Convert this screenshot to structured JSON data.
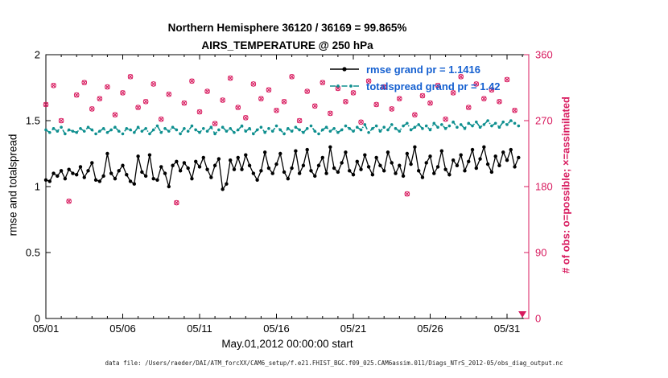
{
  "caption": "data file: /Users/raeder/DAI/ATM_forcXX/CAM6_setup/f.e21.FHIST_BGC.f09_025.CAM6assim.011/Diags_NTrS_2012-05/obs_diag_output.nc",
  "colors": {
    "rmse": "#000000",
    "totalspread": "#0e8f8f",
    "obs": "#d81b5f",
    "legend_text": "#1560d0",
    "background": "#ffffff"
  },
  "chart_data": {
    "type": "line",
    "title": "Northern Hemisphere 36120 / 36169 = 99.865%",
    "subtitle": "AIRS_TEMPERATURE @ 250 hPa",
    "xlabel": "May.01,2012 00:00:00 start",
    "ylabel_left": "rmse and totalspread",
    "ylabel_right": "# of obs: o=possible; ×=assimilated",
    "x_tick_labels": [
      "05/01",
      "05/06",
      "05/11",
      "05/16",
      "05/21",
      "05/26",
      "05/31"
    ],
    "x_tick_days": [
      0,
      5,
      10,
      15,
      20,
      25,
      30
    ],
    "x_range_days": [
      0,
      31.4
    ],
    "y_left": {
      "ticks": [
        0,
        0.5,
        1,
        1.5,
        2
      ],
      "tick_labels": [
        "0",
        "0.5",
        "1",
        "1.5",
        "2"
      ],
      "range": [
        0,
        2
      ]
    },
    "y_right": {
      "ticks": [
        0,
        90,
        180,
        270,
        360
      ],
      "tick_labels": [
        "0",
        "90",
        "180",
        "270",
        "360"
      ],
      "range": [
        0,
        360
      ]
    },
    "grand_means": {
      "rmse": 1.1416,
      "totalspread": 1.42
    },
    "obs_totals": {
      "assimilated": 36120,
      "possible": 36169,
      "percent": "99.865%"
    },
    "legend": {
      "position": "top-center-inside",
      "entries": [
        {
          "label": "rmse grand pr = 1.1416"
        },
        {
          "label": "totalspread grand pr = 1.42"
        }
      ]
    },
    "series": [
      {
        "name": "rmse",
        "axis": "left",
        "samples_per_day": 4,
        "color": "#000000",
        "marker": "point",
        "line": "solid",
        "values": [
          1.05,
          1.04,
          1.1,
          1.08,
          1.12,
          1.06,
          1.13,
          1.1,
          1.09,
          1.15,
          1.07,
          1.12,
          1.18,
          1.05,
          1.04,
          1.08,
          1.25,
          1.1,
          1.06,
          1.12,
          1.16,
          1.09,
          1.04,
          1.02,
          1.23,
          1.11,
          1.08,
          1.24,
          1.06,
          1.05,
          1.15,
          1.1,
          1.0,
          1.16,
          1.19,
          1.12,
          1.18,
          1.14,
          1.06,
          1.19,
          1.15,
          1.22,
          1.13,
          1.07,
          1.16,
          1.21,
          0.98,
          1.02,
          1.2,
          1.13,
          1.22,
          1.13,
          1.24,
          1.16,
          1.1,
          1.05,
          1.12,
          1.26,
          1.14,
          1.1,
          1.17,
          1.25,
          1.11,
          1.06,
          1.14,
          1.27,
          1.1,
          1.16,
          1.28,
          1.12,
          1.08,
          1.16,
          1.22,
          1.1,
          1.3,
          1.14,
          1.11,
          1.18,
          1.26,
          1.12,
          1.09,
          1.19,
          1.13,
          1.24,
          1.15,
          1.09,
          1.22,
          1.16,
          1.12,
          1.26,
          1.18,
          1.1,
          1.16,
          1.08,
          1.25,
          1.17,
          1.3,
          1.12,
          1.07,
          1.18,
          1.23,
          1.1,
          1.15,
          1.27,
          1.13,
          1.09,
          1.2,
          1.16,
          1.24,
          1.12,
          1.19,
          1.28,
          1.14,
          1.21,
          1.3,
          1.17,
          1.11,
          1.23,
          1.16,
          1.26,
          1.2,
          1.28,
          1.15,
          1.22
        ]
      },
      {
        "name": "totalspread",
        "axis": "left",
        "samples_per_day": 4,
        "color": "#0e8f8f",
        "marker": "point",
        "line": "dash-dot",
        "values": [
          1.43,
          1.41,
          1.44,
          1.42,
          1.45,
          1.4,
          1.43,
          1.42,
          1.41,
          1.44,
          1.42,
          1.45,
          1.43,
          1.4,
          1.42,
          1.44,
          1.41,
          1.43,
          1.45,
          1.42,
          1.4,
          1.44,
          1.43,
          1.41,
          1.45,
          1.42,
          1.44,
          1.4,
          1.43,
          1.46,
          1.41,
          1.44,
          1.42,
          1.45,
          1.43,
          1.4,
          1.44,
          1.42,
          1.46,
          1.43,
          1.41,
          1.44,
          1.42,
          1.45,
          1.4,
          1.43,
          1.45,
          1.42,
          1.44,
          1.41,
          1.43,
          1.46,
          1.42,
          1.44,
          1.4,
          1.43,
          1.45,
          1.41,
          1.44,
          1.42,
          1.46,
          1.43,
          1.4,
          1.44,
          1.42,
          1.45,
          1.43,
          1.41,
          1.44,
          1.46,
          1.42,
          1.4,
          1.43,
          1.45,
          1.42,
          1.44,
          1.41,
          1.43,
          1.46,
          1.44,
          1.42,
          1.45,
          1.43,
          1.47,
          1.41,
          1.44,
          1.46,
          1.42,
          1.45,
          1.43,
          1.47,
          1.44,
          1.42,
          1.46,
          1.48,
          1.43,
          1.45,
          1.47,
          1.44,
          1.46,
          1.43,
          1.48,
          1.45,
          1.47,
          1.44,
          1.46,
          1.49,
          1.45,
          1.47,
          1.44,
          1.48,
          1.46,
          1.49,
          1.45,
          1.47,
          1.5,
          1.46,
          1.48,
          1.45,
          1.49,
          1.47,
          1.5,
          1.48,
          1.46
        ]
      },
      {
        "name": "obs_count",
        "axis": "right",
        "samples_per_day": 2,
        "color": "#d81b5f",
        "marker": "o+x",
        "line": "none",
        "note": "o=possible and x=assimilated overlap (99.865% assimilated)",
        "values": [
          292,
          318,
          270,
          160,
          305,
          322,
          286,
          300,
          316,
          278,
          308,
          330,
          288,
          296,
          320,
          272,
          306,
          158,
          294,
          324,
          282,
          310,
          266,
          298,
          328,
          288,
          274,
          320,
          300,
          312,
          284,
          296,
          330,
          270,
          310,
          290,
          322,
          280,
          314,
          296,
          308,
          268,
          324,
          292,
          316,
          286,
          300,
          170,
          278,
          304,
          294,
          318,
          272,
          308,
          330,
          288,
          320,
          300,
          312,
          296,
          326,
          284
        ]
      }
    ],
    "edge_marker": {
      "day": 31,
      "value": 0,
      "shape": "triangle-down",
      "color": "#d81b5f"
    }
  }
}
